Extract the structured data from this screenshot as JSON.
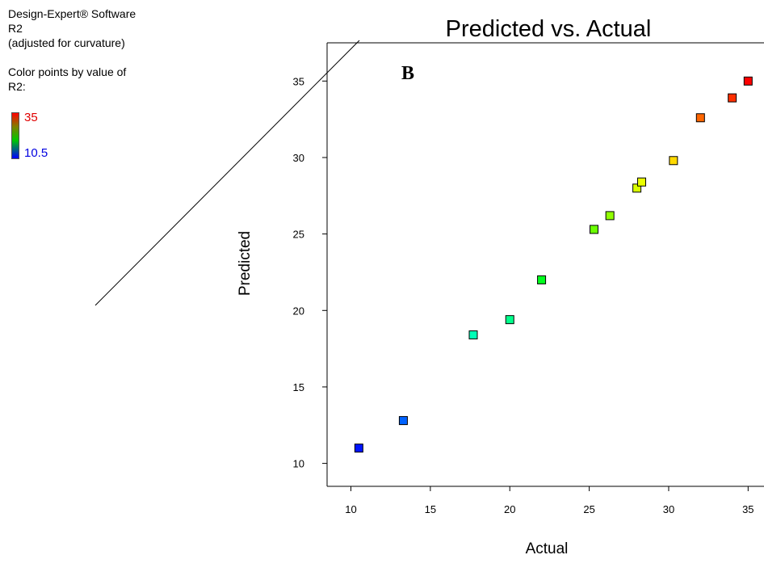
{
  "software_label": "Design-Expert® Software",
  "response_name": "R2",
  "response_note": "(adjusted for curvature)",
  "color_caption_line1": "Color points by value of",
  "color_caption_line2": "R2:",
  "color_scale": {
    "high_label": "35",
    "low_label": "10.5",
    "high_color": "#ff0000",
    "low_color": "#0000ff"
  },
  "panel_letter": "B",
  "chart_data": {
    "type": "scatter",
    "title": "Predicted vs. Actual",
    "xlabel": "Actual",
    "ylabel": "Predicted",
    "xlim": [
      8.5,
      36
    ],
    "ylim": [
      8.5,
      37.5
    ],
    "xticks": [
      10,
      15,
      20,
      25,
      30,
      35
    ],
    "yticks": [
      10,
      15,
      20,
      25,
      30,
      35
    ],
    "grid": false,
    "reference_line": "y = x",
    "points": [
      {
        "x": 10.5,
        "y": 11.0
      },
      {
        "x": 13.3,
        "y": 12.8
      },
      {
        "x": 17.7,
        "y": 18.4
      },
      {
        "x": 20.0,
        "y": 19.4
      },
      {
        "x": 22.0,
        "y": 22.0
      },
      {
        "x": 25.3,
        "y": 25.3
      },
      {
        "x": 26.3,
        "y": 26.2
      },
      {
        "x": 28.0,
        "y": 28.0
      },
      {
        "x": 28.3,
        "y": 28.4
      },
      {
        "x": 30.3,
        "y": 29.8
      },
      {
        "x": 32.0,
        "y": 32.6
      },
      {
        "x": 34.0,
        "y": 33.9
      },
      {
        "x": 35.0,
        "y": 35.0
      }
    ]
  }
}
